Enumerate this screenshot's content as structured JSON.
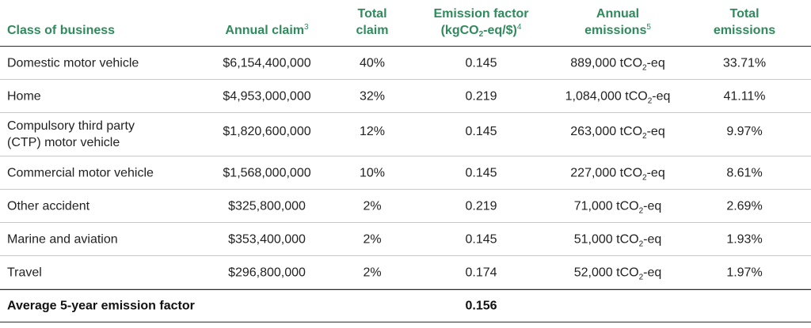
{
  "header": {
    "class_of_business": "Class of business",
    "annual_claim": "Annual claim",
    "annual_claim_note": "3",
    "total_claim_line1": "Total",
    "total_claim_line2": "claim",
    "emission_factor_line1": "Emission factor",
    "emission_factor_line2_pre": "(kgCO",
    "emission_factor_line2_sub": "2",
    "emission_factor_line2_post": "-eq/$)",
    "emission_factor_note": "4",
    "annual_emissions_line1": "Annual",
    "annual_emissions_line2": "emissions",
    "annual_emissions_note": "5",
    "total_emissions_line1": "Total",
    "total_emissions_line2": "emissions"
  },
  "emission_unit": {
    "pre": "tCO",
    "sub": "2",
    "post": "-eq"
  },
  "rows": [
    {
      "business": "Domestic motor vehicle",
      "claim": "$6,154,400,000",
      "total_claim": "40%",
      "factor": "0.145",
      "emissions": "889,000",
      "total_emissions": "33.71%"
    },
    {
      "business": "Home",
      "claim": "$4,953,000,000",
      "total_claim": "32%",
      "factor": "0.219",
      "emissions": "1,084,000",
      "total_emissions": "41.11%"
    },
    {
      "business": "Compulsory third party (CTP) motor vehicle",
      "claim": "$1,820,600,000",
      "total_claim": "12%",
      "factor": "0.145",
      "emissions": "263,000",
      "total_emissions": "9.97%"
    },
    {
      "business": "Commercial motor vehicle",
      "claim": "$1,568,000,000",
      "total_claim": "10%",
      "factor": "0.145",
      "emissions": "227,000",
      "total_emissions": "8.61%"
    },
    {
      "business": "Other accident",
      "claim": "$325,800,000",
      "total_claim": "2%",
      "factor": "0.219",
      "emissions": "71,000",
      "total_emissions": "2.69%"
    },
    {
      "business": "Marine and aviation",
      "claim": "$353,400,000",
      "total_claim": "2%",
      "factor": "0.145",
      "emissions": "51,000",
      "total_emissions": "1.93%"
    },
    {
      "business": "Travel",
      "claim": "$296,800,000",
      "total_claim": "2%",
      "factor": "0.174",
      "emissions": "52,000",
      "total_emissions": "1.97%"
    }
  ],
  "footer": {
    "label": "Average 5-year emission factor",
    "value": "0.156"
  },
  "colors": {
    "header_text": "#2f8a5c",
    "body_text": "#222222",
    "rule": "#2b2b2b"
  }
}
